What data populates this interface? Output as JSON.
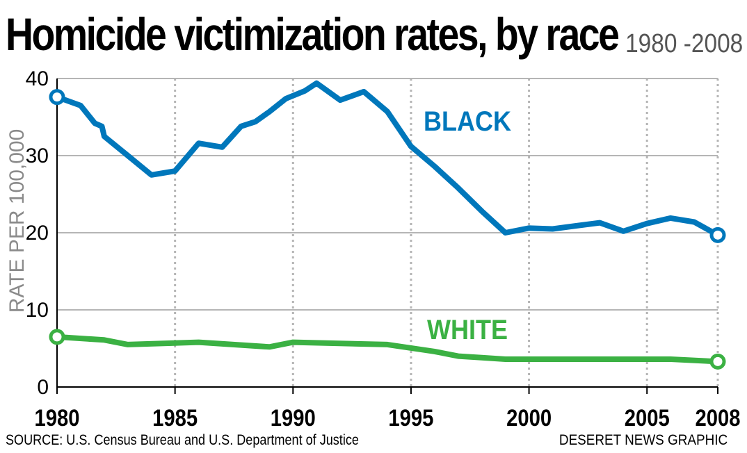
{
  "header": {
    "title": "Homicide victimization rates, by race",
    "subtitle": "1980 -2008"
  },
  "footer": {
    "source": "SOURCE: U.S. Census Bureau and U.S. Department of Justice",
    "credit": "DESERET NEWS GRAPHIC"
  },
  "chart_data": {
    "type": "line",
    "title": "Homicide victimization rates, by race",
    "subtitle": "1980 -2008",
    "xlabel": "",
    "ylabel": "RATE PER 100,000",
    "xlim": [
      1980,
      2008
    ],
    "ylim": [
      0,
      40
    ],
    "x_ticks": [
      "1980",
      "1985",
      "1990",
      "1995",
      "2000",
      "2005",
      "2008"
    ],
    "x_tick_values": [
      1980,
      1985,
      1990,
      1995,
      2000,
      2005,
      2008
    ],
    "y_ticks": [
      "0",
      "10",
      "20",
      "30",
      "40"
    ],
    "y_tick_values": [
      0,
      10,
      20,
      30,
      40
    ],
    "grid": true,
    "series": [
      {
        "name": "BLACK",
        "color": "#0077bb",
        "x": [
          1980,
          1981,
          1981.6,
          1981.9,
          1982,
          1983,
          1984,
          1985,
          1986,
          1987,
          1987.8,
          1988.4,
          1989,
          1989.7,
          1990.5,
          1991,
          1992,
          1993,
          1994,
          1995,
          1996,
          1997,
          1998,
          1999,
          2000,
          2001,
          2002,
          2003,
          2004,
          2005,
          2006,
          2007,
          2008
        ],
        "values": [
          37.6,
          36.5,
          34.2,
          33.8,
          32.5,
          30.0,
          27.5,
          28.0,
          31.6,
          31.1,
          33.8,
          34.4,
          35.7,
          37.4,
          38.4,
          39.4,
          37.2,
          38.3,
          35.7,
          31.2,
          28.6,
          25.8,
          22.8,
          20.0,
          20.6,
          20.5,
          20.9,
          21.3,
          20.2,
          21.2,
          21.9,
          21.4,
          19.7
        ]
      },
      {
        "name": "WHITE",
        "color": "#3bb143",
        "x": [
          1980,
          1982,
          1983,
          1986,
          1989,
          1990,
          1994,
          1996,
          1997,
          1998,
          1999,
          2004,
          2006,
          2008
        ],
        "values": [
          6.5,
          6.1,
          5.5,
          5.8,
          5.2,
          5.8,
          5.5,
          4.6,
          4.0,
          3.8,
          3.6,
          3.6,
          3.6,
          3.3
        ]
      }
    ]
  }
}
